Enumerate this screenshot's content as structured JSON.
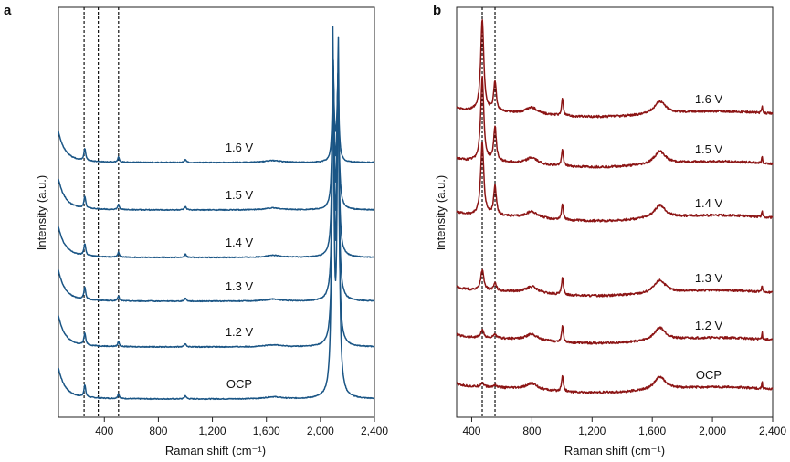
{
  "chart_data": [
    {
      "type": "line",
      "panel": "a",
      "color": "#1a5585",
      "xlabel": "Raman shift (cm⁻¹)",
      "ylabel": "Intensity (a.u.)",
      "xlim": [
        60,
        2400
      ],
      "xticks": [
        400,
        800,
        1200,
        1600,
        2000,
        2400
      ],
      "xtick_labels": [
        "400",
        "800",
        "1,200",
        "1,600",
        "2,000",
        "2,400"
      ],
      "reference_lines": [
        250,
        355,
        505
      ],
      "baseline_peaks": [
        {
          "center": 255,
          "height": 13,
          "width": 8
        },
        {
          "center": 505,
          "height": 5.5,
          "width": 7
        },
        {
          "center": 1000,
          "height": 3.5,
          "width": 8
        },
        {
          "center": 1650,
          "height": 2.2,
          "width": 70
        }
      ],
      "series": [
        {
          "name": "OCP",
          "label": "OCP",
          "offset": 0,
          "peaks": [
            {
              "center": 2092,
              "height": 390,
              "width": 9
            },
            {
              "center": 2132,
              "height": 380,
              "width": 9
            }
          ]
        },
        {
          "name": "1.2 V",
          "label": "1.2 V",
          "offset": 57,
          "peaks": [
            {
              "center": 2095,
              "height": 290,
              "width": 9
            },
            {
              "center": 2130,
              "height": 270,
              "width": 9
            }
          ]
        },
        {
          "name": "1.3 V",
          "label": "1.3 V",
          "offset": 107,
          "peaks": [
            {
              "center": 2095,
              "height": 245,
              "width": 9
            },
            {
              "center": 2130,
              "height": 230,
              "width": 9
            }
          ]
        },
        {
          "name": "1.4 V",
          "label": "1.4 V",
          "offset": 155,
          "peaks": [
            {
              "center": 2095,
              "height": 205,
              "width": 9
            },
            {
              "center": 2130,
              "height": 190,
              "width": 9
            }
          ]
        },
        {
          "name": "1.5 V",
          "label": "1.5 V",
          "offset": 207,
          "peaks": [
            {
              "center": 2095,
              "height": 145,
              "width": 9
            },
            {
              "center": 2130,
              "height": 140,
              "width": 9
            }
          ]
        },
        {
          "name": "1.6 V",
          "label": "1.6 V",
          "offset": 259,
          "peaks": [
            {
              "center": 2095,
              "height": 85,
              "width": 9
            },
            {
              "center": 2130,
              "height": 80,
              "width": 9
            }
          ]
        }
      ]
    },
    {
      "type": "line",
      "panel": "b",
      "color": "#8c1515",
      "xlabel": "Raman shift (cm⁻¹)",
      "ylabel": "Intensity (a.u.)",
      "xlim": [
        300,
        2400
      ],
      "xticks": [
        400,
        800,
        1200,
        1600,
        2000,
        2400
      ],
      "xtick_labels": [
        "400",
        "800",
        "1,200",
        "1,600",
        "2,000",
        "2,400"
      ],
      "reference_lines": [
        470,
        555
      ],
      "baseline_peaks": [
        {
          "center": 800,
          "height": 7,
          "width": 45
        },
        {
          "center": 1003,
          "height": 18,
          "width": 7
        },
        {
          "center": 1650,
          "height": 14,
          "width": 45
        },
        {
          "center": 2330,
          "height": 8,
          "width": 3
        }
      ],
      "series": [
        {
          "name": "OCP",
          "label": "OCP",
          "offset": 0,
          "peaks": [
            {
              "center": 470,
              "height": 5,
              "width": 12
            },
            {
              "center": 555,
              "height": 3,
              "width": 10
            }
          ]
        },
        {
          "name": "1.2 V",
          "label": "1.2 V",
          "offset": 54,
          "peaks": [
            {
              "center": 470,
              "height": 8,
              "width": 12
            },
            {
              "center": 555,
              "height": 4,
              "width": 10
            }
          ]
        },
        {
          "name": "1.3 V",
          "label": "1.3 V",
          "offset": 106,
          "peaks": [
            {
              "center": 470,
              "height": 22,
              "width": 12
            },
            {
              "center": 555,
              "height": 8,
              "width": 10
            }
          ]
        },
        {
          "name": "1.4 V",
          "label": "1.4 V",
          "offset": 188,
          "peaks": [
            {
              "center": 470,
              "height": 80,
              "width": 12
            },
            {
              "center": 555,
              "height": 32,
              "width": 10
            }
          ]
        },
        {
          "name": "1.5 V",
          "label": "1.5 V",
          "offset": 247,
          "peaks": [
            {
              "center": 470,
              "height": 92,
              "width": 12
            },
            {
              "center": 555,
              "height": 38,
              "width": 10
            }
          ]
        },
        {
          "name": "1.6 V",
          "label": "1.6 V",
          "offset": 302,
          "peaks": [
            {
              "center": 470,
              "height": 100,
              "width": 12
            },
            {
              "center": 555,
              "height": 32,
              "width": 10
            }
          ]
        }
      ]
    }
  ]
}
